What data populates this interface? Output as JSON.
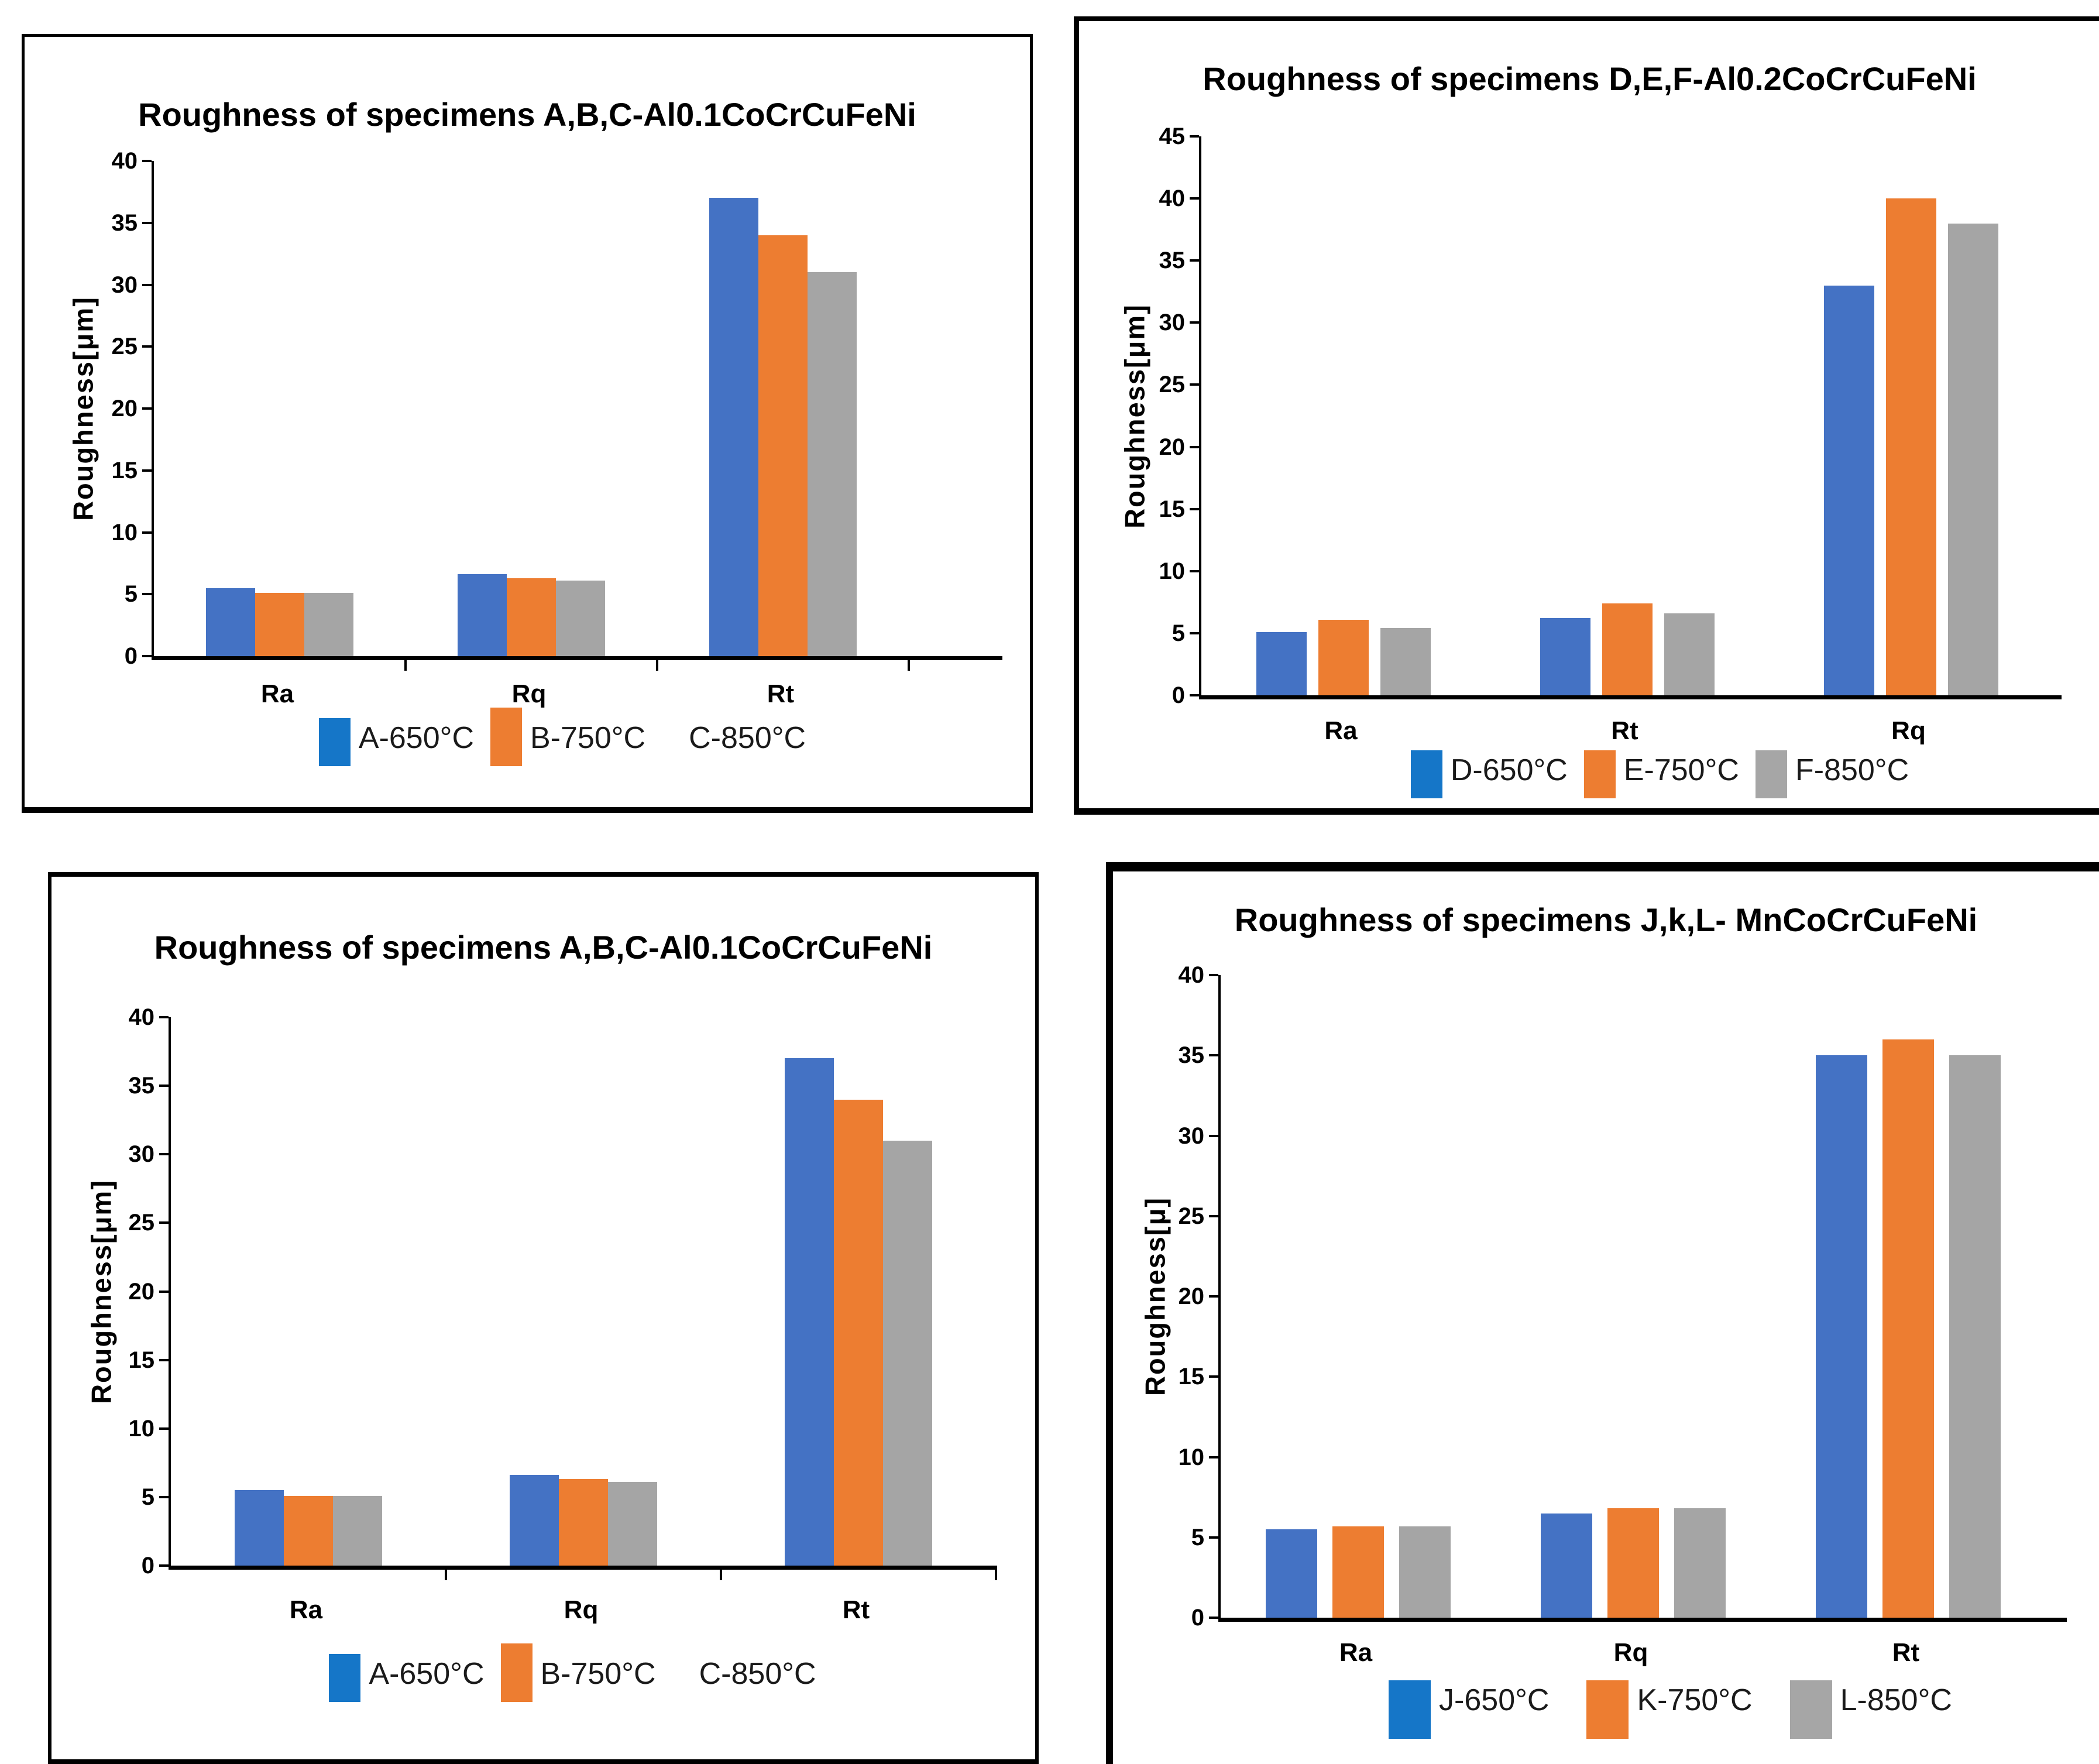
{
  "page": {
    "background": "#ffffff",
    "layout": "2x2 grid of framed bar charts"
  },
  "palette": {
    "series_blue": "#4472C4",
    "series_orange": "#ED7D31",
    "series_gray": "#A5A5A5",
    "legend_blue": "#1576C8",
    "legend_orange": "#ED7D31",
    "legend_gray": "#A6A6A6",
    "axis": "#000000"
  },
  "chart_data": [
    {
      "type": "bar",
      "title": "Roughness of specimens A,B,C-Al0.1CoCrCuFeNi",
      "xlabel": "",
      "ylabel": "Roughness[μm]",
      "ylim": [
        0,
        40
      ],
      "ytick_step": 5,
      "grid": false,
      "legend_position": "bottom",
      "categories": [
        "Ra",
        "Rq",
        "Rt"
      ],
      "series": [
        {
          "name": "A-650°C",
          "color": "#4472C4",
          "values": [
            5.5,
            6.6,
            37
          ]
        },
        {
          "name": "B-750°C",
          "color": "#ED7D31",
          "values": [
            5.1,
            6.3,
            34
          ]
        },
        {
          "name": "C-850°C",
          "color": "#A5A5A5",
          "values": [
            5.1,
            6.1,
            31
          ]
        }
      ],
      "legend_items": [
        {
          "label": "A-650°C",
          "swatch": "#1576C8"
        },
        {
          "label": "B-750°C",
          "swatch": "#ED7D31"
        },
        {
          "label": "C-850°C",
          "swatch": null
        }
      ]
    },
    {
      "type": "bar",
      "title": "Roughness of specimens D,E,F-Al0.2CoCrCuFeNi",
      "xlabel": "",
      "ylabel": "Roughness[μm]",
      "ylim": [
        0,
        45
      ],
      "ytick_step": 5,
      "grid": false,
      "legend_position": "bottom",
      "categories": [
        "Ra",
        "Rt",
        "Rq"
      ],
      "series": [
        {
          "name": "D-650°C",
          "color": "#4472C4",
          "values": [
            5.1,
            6.2,
            33
          ]
        },
        {
          "name": "E-750°C",
          "color": "#ED7D31",
          "values": [
            6.1,
            7.4,
            40
          ]
        },
        {
          "name": "F-850°C",
          "color": "#A5A5A5",
          "values": [
            5.4,
            6.6,
            38
          ]
        }
      ],
      "legend_items": [
        {
          "label": "D-650°C",
          "swatch": "#1576C8"
        },
        {
          "label": "E-750°C",
          "swatch": "#ED7D31"
        },
        {
          "label": "F-850°C",
          "swatch": "#A6A6A6"
        }
      ]
    },
    {
      "type": "bar",
      "title": "Roughness of specimens A,B,C-Al0.1CoCrCuFeNi",
      "xlabel": "",
      "ylabel": "Roughness[μm]",
      "ylim": [
        0,
        40
      ],
      "ytick_step": 5,
      "grid": false,
      "legend_position": "bottom",
      "categories": [
        "Ra",
        "Rq",
        "Rt"
      ],
      "series": [
        {
          "name": "A-650°C",
          "color": "#4472C4",
          "values": [
            5.5,
            6.6,
            37
          ]
        },
        {
          "name": "B-750°C",
          "color": "#ED7D31",
          "values": [
            5.1,
            6.3,
            34
          ]
        },
        {
          "name": "C-850°C",
          "color": "#A5A5A5",
          "values": [
            5.1,
            6.1,
            31
          ]
        }
      ],
      "legend_items": [
        {
          "label": "A-650°C",
          "swatch": "#1576C8"
        },
        {
          "label": "B-750°C",
          "swatch": "#ED7D31"
        },
        {
          "label": "C-850°C",
          "swatch": null
        }
      ]
    },
    {
      "type": "bar",
      "title": "Roughness of specimens J,k,L- MnCoCrCuFeNi",
      "xlabel": "",
      "ylabel": "Roughness[μ]",
      "ylim": [
        0,
        40
      ],
      "ytick_step": 5,
      "grid": false,
      "legend_position": "bottom",
      "categories": [
        "Ra",
        "Rq",
        "Rt"
      ],
      "series": [
        {
          "name": "J-650°C",
          "color": "#4472C4",
          "values": [
            5.5,
            6.5,
            35
          ]
        },
        {
          "name": "K-750°C",
          "color": "#ED7D31",
          "values": [
            5.7,
            6.8,
            36
          ]
        },
        {
          "name": "L-850°C",
          "color": "#A5A5A5",
          "values": [
            5.7,
            6.8,
            35
          ]
        }
      ],
      "legend_items": [
        {
          "label": "J-650°C",
          "swatch": "#1576C8"
        },
        {
          "label": "K-750°C",
          "swatch": "#ED7D31"
        },
        {
          "label": "L-850°C",
          "swatch": "#A6A6A6"
        }
      ]
    }
  ]
}
